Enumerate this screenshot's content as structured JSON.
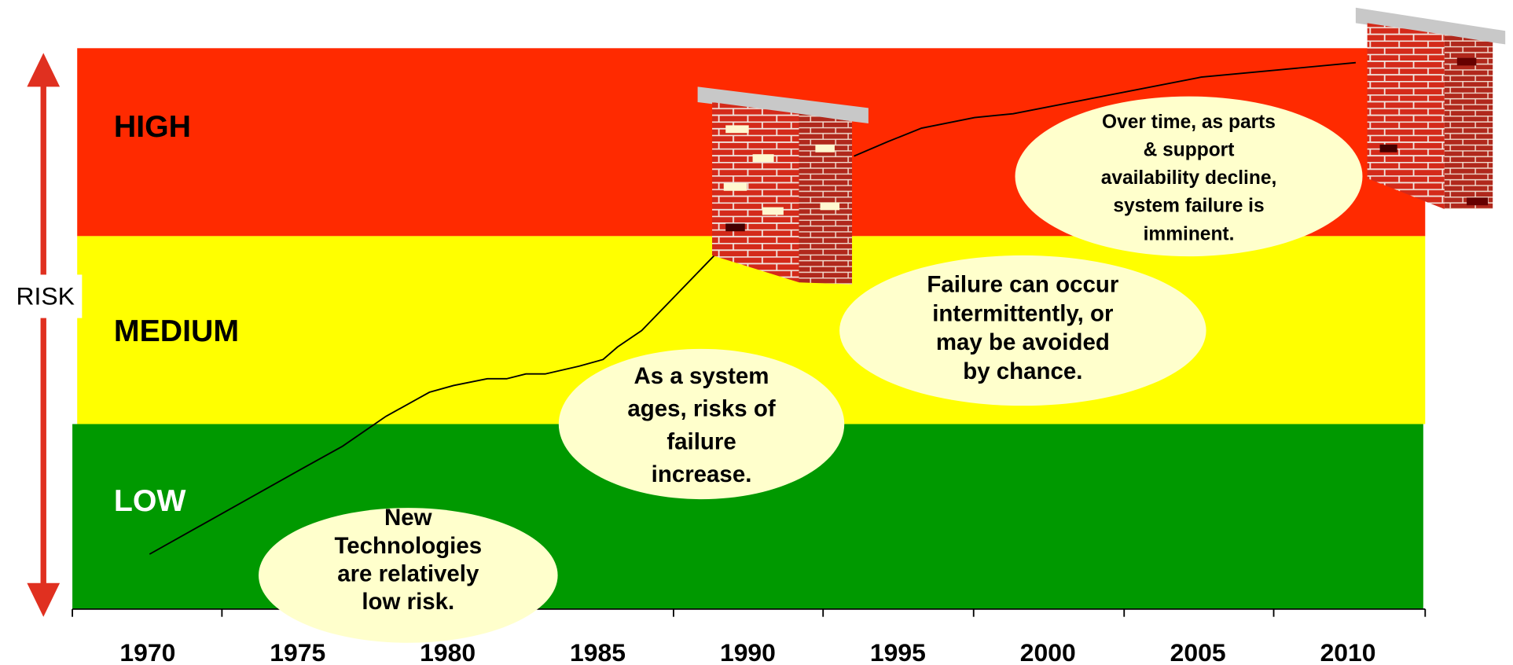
{
  "axis_label": "RISK",
  "bands": [
    "HIGH",
    "MEDIUM",
    "LOW"
  ],
  "years": [
    "1970",
    "1975",
    "1980",
    "1985",
    "1990",
    "1995",
    "2000",
    "2005",
    "2010"
  ],
  "callouts": [
    {
      "lines": [
        "New",
        "Technologies",
        "are relatively",
        "low risk."
      ]
    },
    {
      "lines": [
        "As a system",
        "ages, risks of",
        "failure",
        "increase."
      ]
    },
    {
      "lines": [
        "Failure can occur",
        "intermittently, or",
        "may be avoided",
        "by chance."
      ]
    },
    {
      "lines": [
        "Over time, as parts",
        "& support",
        "availability decline,",
        "system failure is",
        "imminent."
      ]
    }
  ]
}
